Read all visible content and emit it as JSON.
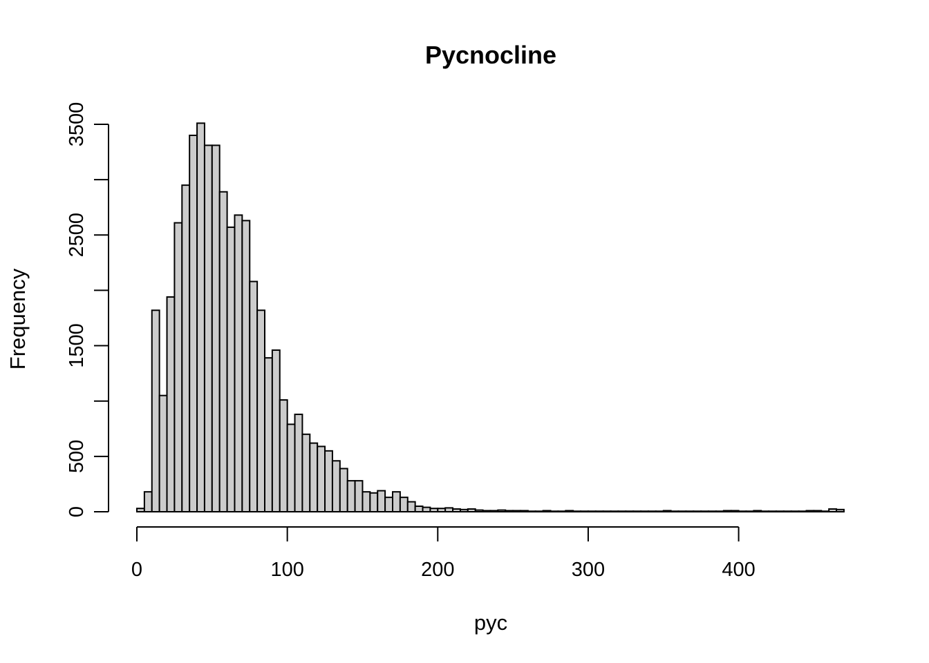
{
  "chart_data": {
    "type": "bar",
    "title": "Pycnocline",
    "xlabel": "pyc",
    "ylabel": "Frequency",
    "bin_width": 5,
    "bins_start": 0,
    "xlim": [
      0,
      470
    ],
    "ylim": [
      0,
      3500
    ],
    "x_ticks": [
      0,
      100,
      200,
      300,
      400
    ],
    "y_ticks": [
      0,
      500,
      1000,
      1500,
      2000,
      2500,
      3000,
      3500
    ],
    "y_tick_labels": [
      "0",
      "500",
      "",
      "1500",
      "",
      "2500",
      "",
      "3500"
    ],
    "values": [
      30,
      180,
      1820,
      1050,
      1940,
      2610,
      2950,
      3400,
      3510,
      3310,
      3310,
      2890,
      2570,
      2680,
      2630,
      2080,
      1820,
      1390,
      1460,
      1010,
      790,
      880,
      700,
      620,
      590,
      550,
      460,
      390,
      280,
      280,
      180,
      170,
      190,
      130,
      180,
      130,
      90,
      50,
      40,
      30,
      30,
      35,
      25,
      20,
      25,
      15,
      10,
      10,
      15,
      10,
      10,
      10,
      5,
      5,
      10,
      5,
      5,
      10,
      5,
      5,
      5,
      5,
      5,
      5,
      5,
      5,
      5,
      5,
      5,
      5,
      10,
      5,
      5,
      5,
      5,
      5,
      5,
      5,
      10,
      10,
      5,
      5,
      10,
      5,
      5,
      5,
      5,
      5,
      5,
      10,
      10,
      5,
      25,
      20
    ]
  }
}
